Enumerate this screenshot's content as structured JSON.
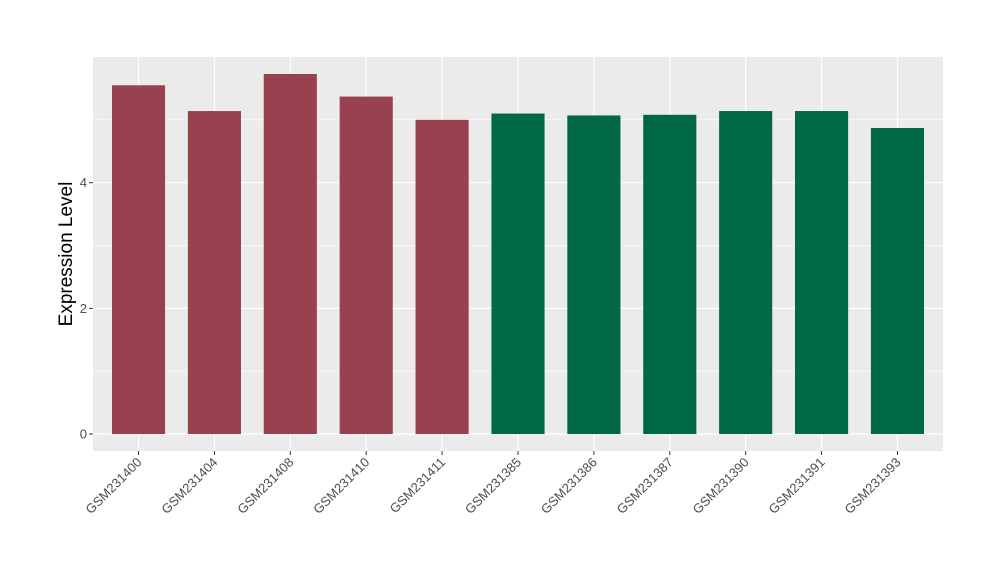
{
  "chart_data": {
    "type": "bar",
    "title": "",
    "xlabel": "",
    "ylabel": "Expression Level",
    "categories": [
      "GSM231400",
      "GSM231404",
      "GSM231408",
      "GSM231410",
      "GSM231411",
      "GSM231385",
      "GSM231386",
      "GSM231387",
      "GSM231390",
      "GSM231391",
      "GSM231393"
    ],
    "values": [
      5.55,
      5.14,
      5.73,
      5.37,
      5.0,
      5.1,
      5.07,
      5.08,
      5.14,
      5.14,
      4.87
    ],
    "group_colors": [
      "#99424f",
      "#99424f",
      "#99424f",
      "#99424f",
      "#99424f",
      "#006843",
      "#006843",
      "#006843",
      "#006843",
      "#006843",
      "#006843"
    ],
    "yticks": [
      0,
      2,
      4
    ],
    "ylim": [
      -0.27,
      6.0
    ],
    "grid": true,
    "panel_background": "#ebebeb",
    "legend": "none"
  }
}
